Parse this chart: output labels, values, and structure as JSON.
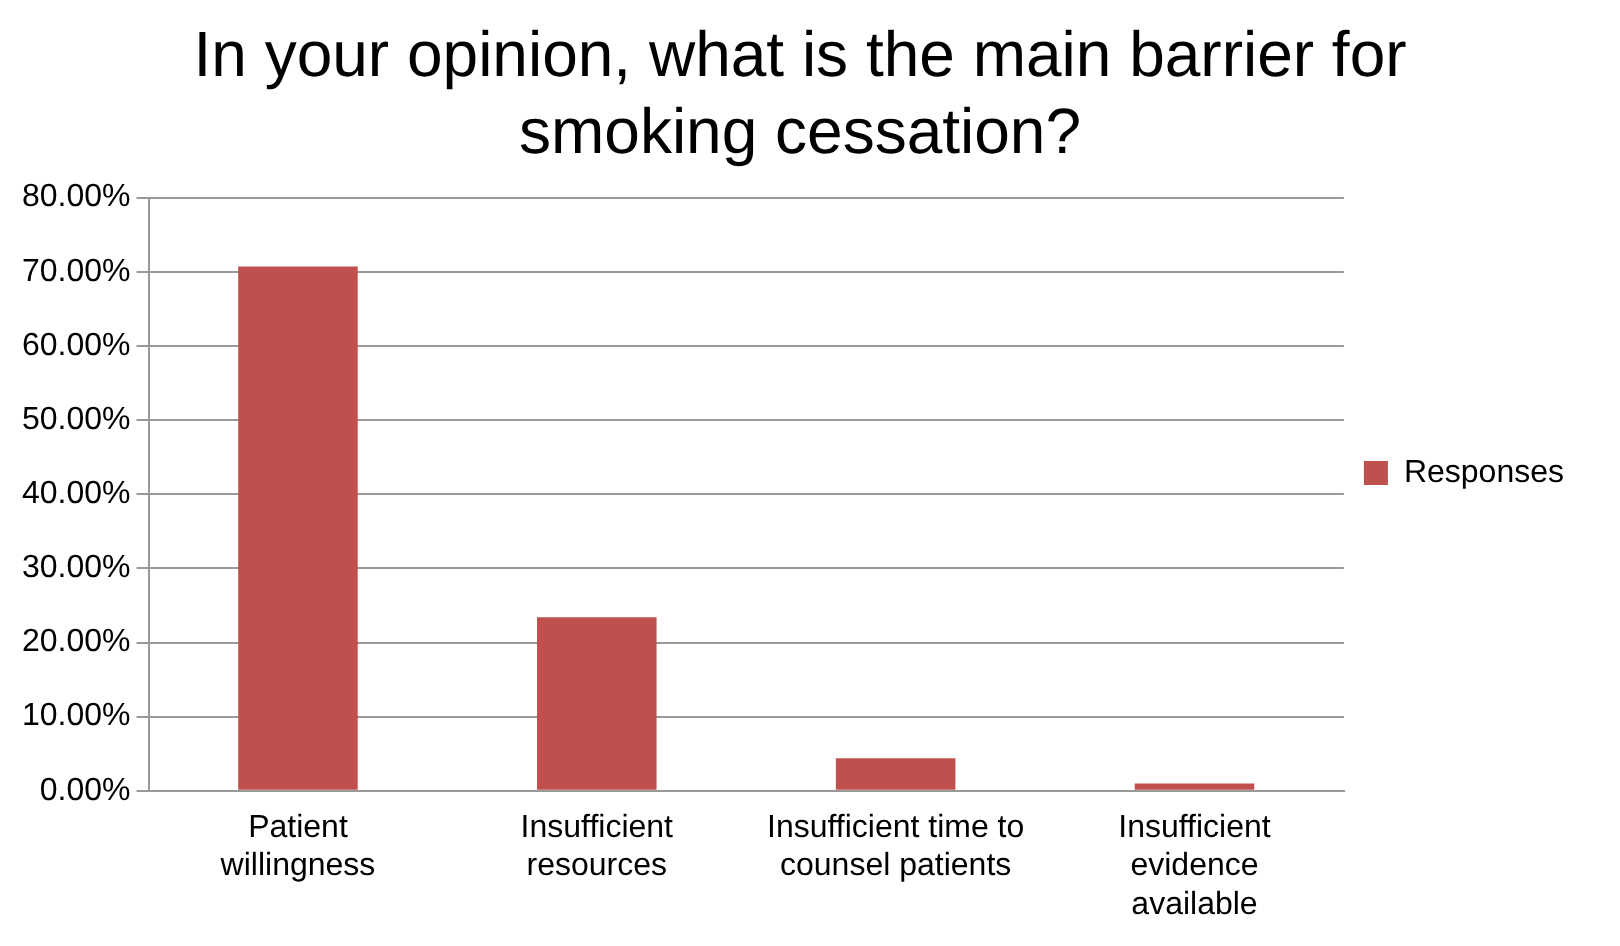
{
  "chart_data": {
    "type": "bar",
    "title": "In your opinion, what is the main barrier for smoking cessation?",
    "categories": [
      "Patient willingness",
      "Insufficient resources",
      "Insufficient time to counsel patients",
      "Insufficient evidence available"
    ],
    "series": [
      {
        "name": "Responses",
        "color": "#c0504d",
        "values": [
          70.7,
          23.4,
          4.4,
          1.0
        ]
      }
    ],
    "ylim": [
      0,
      80
    ],
    "yticks": [
      {
        "value": 0,
        "label": "0.00%"
      },
      {
        "value": 10,
        "label": "10.00%"
      },
      {
        "value": 20,
        "label": "20.00%"
      },
      {
        "value": 30,
        "label": "30.00%"
      },
      {
        "value": 40,
        "label": "40.00%"
      },
      {
        "value": 50,
        "label": "50.00%"
      },
      {
        "value": 60,
        "label": "60.00%"
      },
      {
        "value": 70,
        "label": "70.00%"
      },
      {
        "value": 80,
        "label": "80.00%"
      }
    ],
    "grid": "y",
    "legend": "right"
  }
}
